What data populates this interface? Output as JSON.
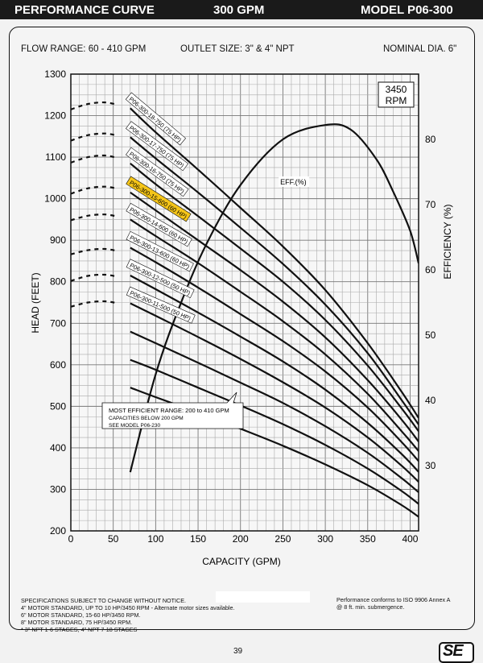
{
  "header": {
    "title": "PERFORMANCE CURVE",
    "flow": "300 GPM",
    "model": "MODEL  P06-300"
  },
  "info": {
    "flow_range": "FLOW RANGE: 60 - 410 GPM",
    "outlet": "OUTLET SIZE: 3\" & 4\" NPT",
    "nominal": "NOMINAL DIA. 6\""
  },
  "footer": {
    "lines": [
      "SPECIFICATIONS SUBJECT TO CHANGE WITHOUT NOTICE.",
      "4\" MOTOR STANDARD, UP TO 10 HP/3450 RPM - Alternate motor sizes available.",
      "6\" MOTOR STANDARD, 15-60 HP/3450 RPM.",
      "8\" MOTOR STANDARD, 75 HP/3450 RPM.",
      "* 3\" NPT 1-6 STAGES, 4\" NPT 7-18 STAGES"
    ],
    "right_lines": [
      "Performance conforms to ISO 9906 Annex A",
      "@ 8 ft. min. submergence."
    ],
    "page_number": "39",
    "logo_text": "SE"
  },
  "chart_data": {
    "type": "line",
    "xlabel": "CAPACITY (GPM)",
    "ylabel": "HEAD (FEET)",
    "y2label": "EFFICIENCY (%)",
    "rpm_label": [
      "3450",
      "RPM"
    ],
    "xlim": [
      0,
      410
    ],
    "ylim": [
      200,
      1300
    ],
    "y2lim": [
      20,
      90
    ],
    "x_ticks": [
      0,
      50,
      100,
      150,
      200,
      250,
      300,
      350,
      400
    ],
    "y_ticks": [
      200,
      300,
      400,
      500,
      600,
      700,
      800,
      900,
      1000,
      1100,
      1200,
      1300
    ],
    "y2_ticks": [
      30,
      40,
      50,
      60,
      70,
      80
    ],
    "grid": true,
    "highlight_color": "#f5c518",
    "series": [
      {
        "name": "P06-300-18-750 (75 HP)",
        "highlight": false,
        "dashed": [
          [
            0,
            1215
          ],
          [
            20,
            1228
          ],
          [
            40,
            1232
          ],
          [
            55,
            1226
          ]
        ],
        "points": [
          [
            70,
            1218
          ],
          [
            100,
            1160
          ],
          [
            150,
            1070
          ],
          [
            200,
            978
          ],
          [
            250,
            885
          ],
          [
            300,
            780
          ],
          [
            350,
            652
          ],
          [
            390,
            535
          ],
          [
            410,
            472
          ]
        ]
      },
      {
        "name": "P06-300-17-750 (75 HP)",
        "highlight": false,
        "dashed": [
          [
            0,
            1140
          ],
          [
            20,
            1153
          ],
          [
            40,
            1157
          ],
          [
            55,
            1152
          ]
        ],
        "points": [
          [
            70,
            1148
          ],
          [
            100,
            1097
          ],
          [
            150,
            1015
          ],
          [
            200,
            930
          ],
          [
            250,
            843
          ],
          [
            300,
            745
          ],
          [
            350,
            628
          ],
          [
            390,
            515
          ],
          [
            410,
            456
          ]
        ]
      },
      {
        "name": "P06-300-16-750 (75 HP)",
        "highlight": false,
        "dashed": [
          [
            0,
            1087
          ],
          [
            20,
            1100
          ],
          [
            40,
            1104
          ],
          [
            55,
            1098
          ]
        ],
        "points": [
          [
            70,
            1085
          ],
          [
            100,
            1035
          ],
          [
            150,
            958
          ],
          [
            200,
            880
          ],
          [
            250,
            800
          ],
          [
            300,
            708
          ],
          [
            350,
            598
          ],
          [
            390,
            495
          ],
          [
            410,
            440
          ]
        ]
      },
      {
        "name": "P06-300-15-600 (60 HP)",
        "highlight": true,
        "dashed": [
          [
            0,
            1012
          ],
          [
            20,
            1025
          ],
          [
            40,
            1029
          ],
          [
            55,
            1024
          ]
        ],
        "points": [
          [
            70,
            1015
          ],
          [
            100,
            972
          ],
          [
            150,
            900
          ],
          [
            200,
            828
          ],
          [
            250,
            752
          ],
          [
            300,
            666
          ],
          [
            350,
            563
          ],
          [
            390,
            468
          ],
          [
            410,
            415
          ]
        ]
      },
      {
        "name": "P06-300-14-600 (60 HP)",
        "highlight": false,
        "dashed": [
          [
            0,
            948
          ],
          [
            20,
            959
          ],
          [
            40,
            962
          ],
          [
            55,
            957
          ]
        ],
        "points": [
          [
            70,
            950
          ],
          [
            100,
            910
          ],
          [
            150,
            845
          ],
          [
            200,
            776
          ],
          [
            250,
            705
          ],
          [
            300,
            625
          ],
          [
            350,
            530
          ],
          [
            390,
            440
          ],
          [
            410,
            392
          ]
        ]
      },
      {
        "name": "P06-300-13-600 (60 HP)",
        "highlight": false,
        "dashed": [
          [
            0,
            866
          ],
          [
            20,
            876
          ],
          [
            40,
            879
          ],
          [
            55,
            874
          ]
        ],
        "points": [
          [
            70,
            882
          ],
          [
            100,
            847
          ],
          [
            150,
            786
          ],
          [
            200,
            722
          ],
          [
            250,
            657
          ],
          [
            300,
            584
          ],
          [
            350,
            497
          ],
          [
            390,
            414
          ],
          [
            410,
            368
          ]
        ]
      },
      {
        "name": "P06-300-12-500 (50 HP)",
        "highlight": false,
        "dashed": [
          [
            0,
            802
          ],
          [
            20,
            814
          ],
          [
            40,
            817
          ],
          [
            55,
            812
          ]
        ],
        "points": [
          [
            70,
            815
          ],
          [
            100,
            782
          ],
          [
            150,
            726
          ],
          [
            200,
            668
          ],
          [
            250,
            608
          ],
          [
            300,
            540
          ],
          [
            350,
            460
          ],
          [
            390,
            385
          ],
          [
            410,
            342
          ]
        ]
      },
      {
        "name": "P06-300-11-500 (50 HP)",
        "highlight": false,
        "dashed": [
          [
            0,
            740
          ],
          [
            20,
            750
          ],
          [
            40,
            753
          ],
          [
            55,
            748
          ]
        ],
        "points": [
          [
            70,
            748
          ],
          [
            100,
            718
          ],
          [
            150,
            667
          ],
          [
            200,
            614
          ],
          [
            250,
            558
          ],
          [
            300,
            497
          ],
          [
            350,
            425
          ],
          [
            390,
            357
          ],
          [
            410,
            318
          ]
        ]
      },
      {
        "name": "",
        "highlight": false,
        "dashed": [],
        "points": [
          [
            70,
            680
          ],
          [
            100,
            652
          ],
          [
            150,
            605
          ],
          [
            200,
            557
          ],
          [
            250,
            508
          ],
          [
            300,
            452
          ],
          [
            350,
            388
          ],
          [
            390,
            327
          ],
          [
            410,
            293
          ]
        ]
      },
      {
        "name": "",
        "highlight": false,
        "dashed": [],
        "points": [
          [
            70,
            612
          ],
          [
            100,
            588
          ],
          [
            150,
            545
          ],
          [
            200,
            502
          ],
          [
            250,
            457
          ],
          [
            300,
            407
          ],
          [
            350,
            350
          ],
          [
            390,
            296
          ],
          [
            410,
            265
          ]
        ]
      },
      {
        "name": "",
        "highlight": false,
        "dashed": [],
        "points": [
          [
            70,
            545
          ],
          [
            100,
            522
          ],
          [
            150,
            485
          ],
          [
            200,
            446
          ],
          [
            250,
            405
          ],
          [
            300,
            360
          ],
          [
            350,
            310
          ],
          [
            390,
            262
          ],
          [
            410,
            234
          ]
        ]
      }
    ],
    "efficiency": {
      "label": "EFF.(%)",
      "points": [
        [
          70,
          29
        ],
        [
          100,
          44
        ],
        [
          130,
          55
        ],
        [
          160,
          64
        ],
        [
          200,
          73
        ],
        [
          250,
          80
        ],
        [
          300,
          82.2
        ],
        [
          330,
          81.5
        ],
        [
          360,
          77
        ],
        [
          380,
          72
        ],
        [
          400,
          66
        ],
        [
          410,
          61
        ]
      ]
    },
    "note": {
      "line1": "MOST EFFICIENT RANGE: 200 to 410 GPM",
      "line2": "CAPACITIES BELOW 200 GPM",
      "line3": "SEE  MODEL  P06-230"
    }
  }
}
